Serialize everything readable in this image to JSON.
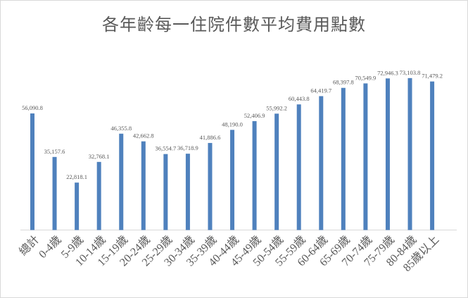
{
  "chart_data": {
    "type": "bar",
    "title": "各年齡每一住院件數平均費用點數",
    "xlabel": "",
    "ylabel": "",
    "ylim": [
      0,
      80000
    ],
    "grid": false,
    "legend": "none",
    "bar_color": "#4f81bd",
    "categories": [
      "總計",
      "0-4歲",
      "5-9歲",
      "10-14歲",
      "15-19歲",
      "20-24歲",
      "25-29歲",
      "30-34歲",
      "35-39歲",
      "40-44歲",
      "45-49歲",
      "50-54歲",
      "55-59歲",
      "60-64歲",
      "65-69歲",
      "70-74歲",
      "75-79歲",
      "80-84歲",
      "85歲以上"
    ],
    "values": [
      56090.8,
      35157.6,
      22818.1,
      32768.1,
      46355.8,
      42662.8,
      36554.7,
      36718.9,
      41886.6,
      48190.0,
      52406.9,
      55992.2,
      60443.8,
      64419.7,
      68397.8,
      70549.9,
      72946.3,
      73103.8,
      71479.2
    ],
    "value_labels": [
      "56,090.8",
      "35,157.6",
      "22,818.1",
      "32,768.1",
      "46,355.8",
      "42,662.8",
      "36,554.7",
      "36,718.9",
      "41,886.6",
      "48,190.0",
      "52,406.9",
      "55,992.2",
      "60,443.8",
      "64,419.7",
      "68,397.8",
      "70,549.9",
      "72,946.3",
      "73,103.8",
      "71,479.2"
    ]
  }
}
